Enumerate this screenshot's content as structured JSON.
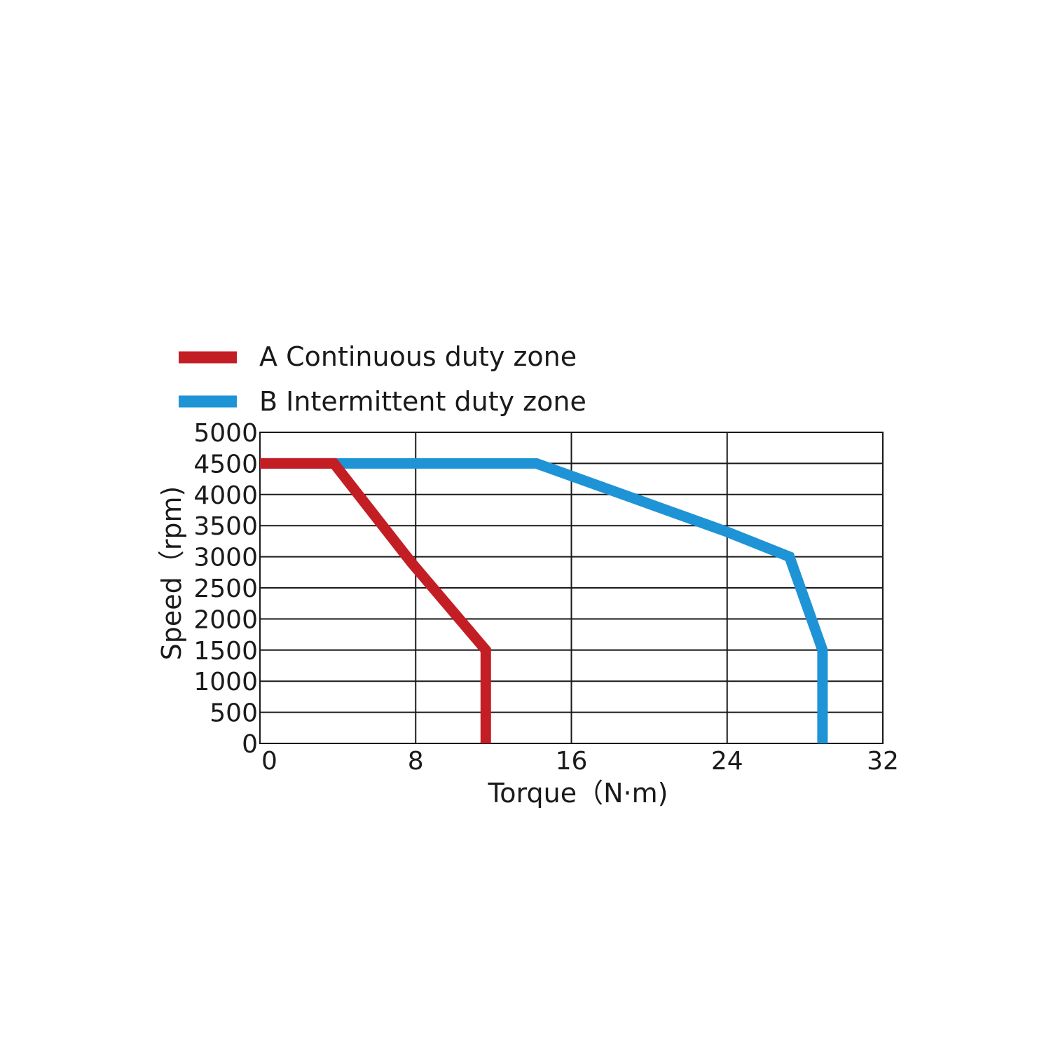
{
  "chart_data": {
    "type": "line",
    "xlabel": "Torque（N·m)",
    "ylabel": "Speed（rpm)",
    "xlim": [
      0,
      32
    ],
    "ylim": [
      0,
      5000
    ],
    "x_ticks": [
      0,
      8,
      16,
      24,
      32
    ],
    "y_ticks": [
      0,
      500,
      1000,
      1500,
      2000,
      2500,
      3000,
      3500,
      4000,
      4500,
      5000
    ],
    "grid": true,
    "legend_position": "top-left",
    "series": [
      {
        "name": "A Continuous duty zone",
        "color": "#c41e25",
        "points": [
          [
            0,
            4500
          ],
          [
            3.8,
            4500
          ],
          [
            7.8,
            2900
          ],
          [
            11.6,
            1500
          ],
          [
            11.6,
            0
          ]
        ]
      },
      {
        "name": "B Intermittent duty zone",
        "color": "#1e94d6",
        "points": [
          [
            0,
            4500
          ],
          [
            14.2,
            4500
          ],
          [
            24.0,
            3400
          ],
          [
            27.2,
            3000
          ],
          [
            28.9,
            1500
          ],
          [
            28.9,
            0
          ]
        ]
      }
    ]
  }
}
